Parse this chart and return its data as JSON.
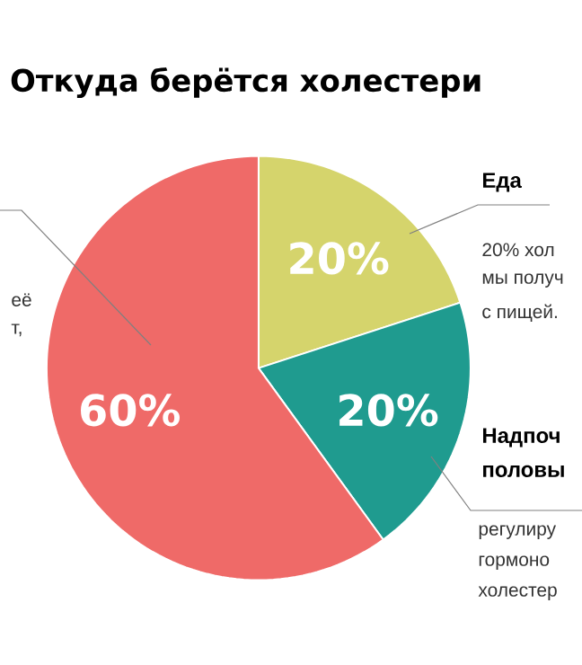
{
  "chart_data": {
    "type": "pie",
    "title": "Откуда берётся холестери",
    "categories": [
      "Еда",
      "Надпоч половы",
      null
    ],
    "values": [
      20,
      20,
      60
    ],
    "colors": [
      "#d5d46c",
      "#1f9b8f",
      "#ef6a68"
    ],
    "value_labels": [
      "20%",
      "20%",
      "60%"
    ],
    "annotations": [
      "её",
      "т,",
      "20% хол",
      "мы получ",
      "с пищей.",
      "регулиру",
      "гормоно",
      "холестер"
    ]
  }
}
